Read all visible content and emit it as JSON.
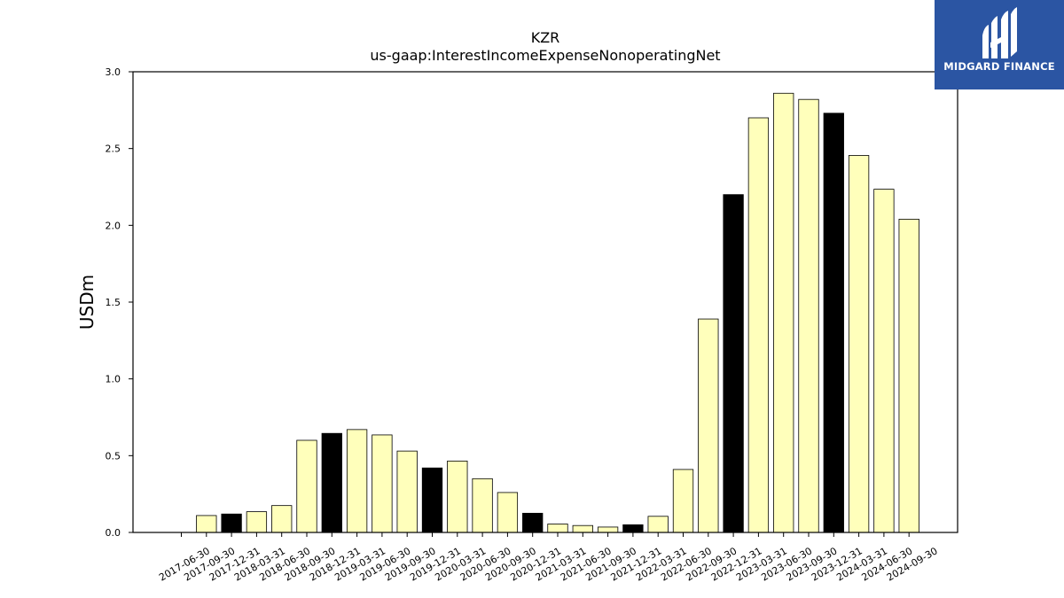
{
  "brand": {
    "name": "MIDGARD FINANCE",
    "color": "#2b55a3"
  },
  "colors": {
    "bar_default": "#ffffbb",
    "bar_highlight": "#000000",
    "edge": "#000000"
  },
  "chart_data": {
    "type": "bar",
    "title": "KZR",
    "subtitle": "us-gaap:InterestIncomeExpenseNonoperatingNet",
    "xlabel": "",
    "ylabel": "USDm",
    "ylim": [
      0,
      3.0
    ],
    "yticks": [
      "0.0",
      "0.5",
      "1.0",
      "1.5",
      "2.0",
      "2.5",
      "3.0"
    ],
    "grid": false,
    "categories": [
      "2017-06-30",
      "2017-09-30",
      "2017-12-31",
      "2018-03-31",
      "2018-06-30",
      "2018-09-30",
      "2018-12-31",
      "2019-03-31",
      "2019-06-30",
      "2019-09-30",
      "2019-12-31",
      "2020-03-31",
      "2020-06-30",
      "2020-09-30",
      "2020-12-31",
      "2021-03-31",
      "2021-06-30",
      "2021-09-30",
      "2021-12-31",
      "2022-03-31",
      "2022-06-30",
      "2022-09-30",
      "2022-12-31",
      "2023-03-31",
      "2023-06-30",
      "2023-09-30",
      "2023-12-31",
      "2024-03-31",
      "2024-06-30",
      "2024-09-30"
    ],
    "values": [
      0,
      0.11,
      0.12,
      0.135,
      0.175,
      0.6,
      0.645,
      0.67,
      0.635,
      0.53,
      0.42,
      0.465,
      0.35,
      0.26,
      0.125,
      0.055,
      0.045,
      0.035,
      0.05,
      0.105,
      0.41,
      1.39,
      2.2,
      2.7,
      2.86,
      2.82,
      2.73,
      2.455,
      2.235,
      2.04
    ],
    "highlighted": [
      false,
      false,
      true,
      false,
      false,
      false,
      true,
      false,
      false,
      false,
      true,
      false,
      false,
      false,
      true,
      false,
      false,
      false,
      true,
      false,
      false,
      false,
      true,
      false,
      false,
      false,
      true,
      false,
      false,
      false
    ]
  }
}
